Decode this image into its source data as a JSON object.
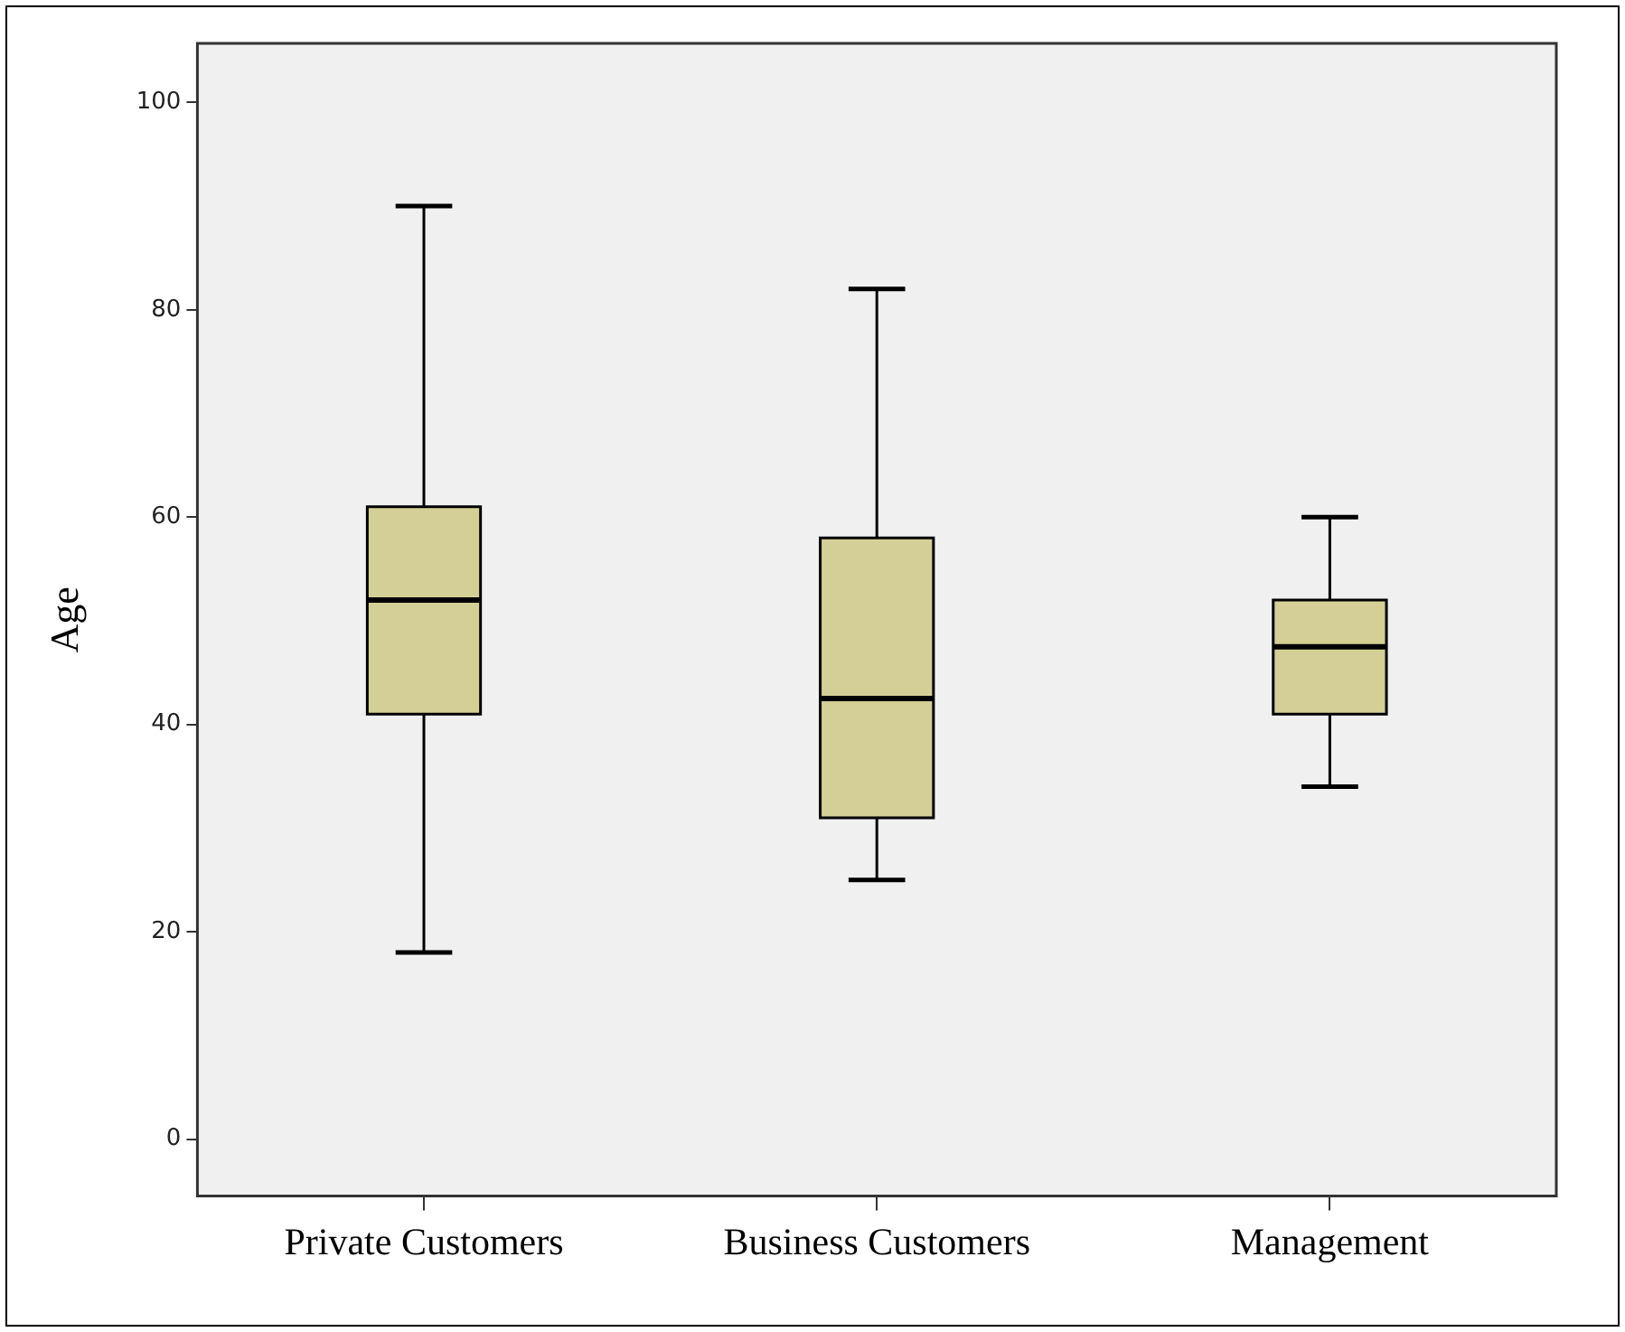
{
  "chart_data": {
    "type": "box",
    "ylabel": "Age",
    "categories": [
      "Private Customers",
      "Business Customers",
      "Management"
    ],
    "color": "#d3cf96",
    "boxes": [
      {
        "low": 18,
        "q1": 41,
        "median": 52,
        "q3": 61,
        "high": 90
      },
      {
        "low": 25,
        "q1": 31,
        "median": 42.5,
        "q3": 58,
        "high": 82
      },
      {
        "low": 34,
        "q1": 41,
        "median": 47.5,
        "q3": 52,
        "high": 60
      }
    ],
    "ylim": [
      -5.5,
      105.7
    ],
    "yticks": [
      0,
      20,
      40,
      60,
      80,
      100
    ]
  }
}
